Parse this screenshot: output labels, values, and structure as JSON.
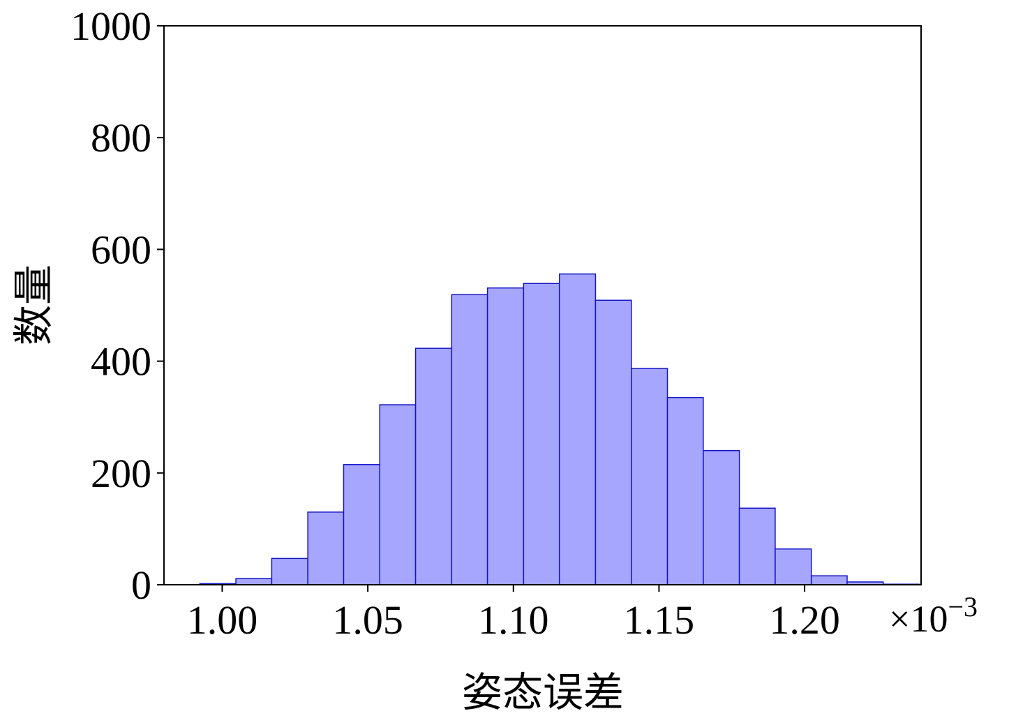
{
  "chart_data": {
    "type": "histogram",
    "xlabel": "姿态误差",
    "ylabel": "数量",
    "x_offset_text": {
      "base": "×10",
      "exponent": "−3"
    },
    "bins": [
      0.9923,
      1.0047,
      1.017,
      1.0294,
      1.0417,
      1.0541,
      1.0664,
      1.0788,
      1.0911,
      1.1035,
      1.1158,
      1.1282,
      1.1405,
      1.1529,
      1.1652,
      1.1776,
      1.1899,
      1.2023,
      1.2146,
      1.227,
      1.2393
    ],
    "counts": [
      2,
      11,
      47,
      130,
      215,
      322,
      423,
      519,
      531,
      539,
      556,
      509,
      387,
      335,
      240,
      137,
      64,
      16,
      5,
      1
    ],
    "color": "#a6a6ff",
    "edgecolor": "#1414c8",
    "xlim": [
      0.98,
      1.24
    ],
    "ylim": [
      0,
      1000
    ],
    "xticks": [
      {
        "value": 1.0,
        "label": "1.00"
      },
      {
        "value": 1.05,
        "label": "1.05"
      },
      {
        "value": 1.1,
        "label": "1.10"
      },
      {
        "value": 1.15,
        "label": "1.15"
      },
      {
        "value": 1.2,
        "label": "1.20"
      }
    ],
    "yticks": [
      0,
      200,
      400,
      600,
      800,
      1000
    ]
  }
}
